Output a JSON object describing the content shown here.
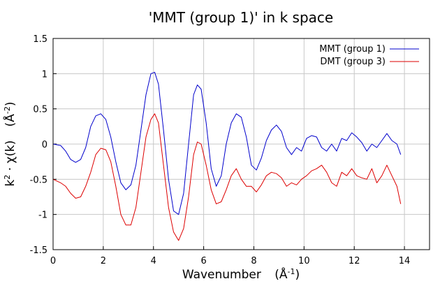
{
  "chart_data": {
    "type": "line",
    "title": "'MMT (group 1)' in k space",
    "xlabel_text": "Wavenumber",
    "xlabel_unit_base": "(Å",
    "xlabel_unit_exp": "-1",
    "xlabel_unit_close": ")",
    "ylabel_k": "k",
    "ylabel_k_exp": "2",
    "ylabel_mid": " · χ(k)",
    "ylabel_unit_base": "(Å",
    "ylabel_unit_exp": "-2",
    "ylabel_unit_close": ")",
    "xlim": [
      0,
      15
    ],
    "ylim": [
      -1.5,
      1.5
    ],
    "x_ticks": [
      0,
      2,
      4,
      6,
      8,
      10,
      12,
      14
    ],
    "y_ticks": [
      -1.5,
      -1,
      -0.5,
      0,
      0.5,
      1,
      1.5
    ],
    "y_tick_labels": [
      "-1.5",
      "-1",
      "-0.5",
      "0",
      "0.5",
      "1",
      "1.5"
    ],
    "grid": true,
    "legend_position": "top-right",
    "series": [
      {
        "name": "MMT (group 1)",
        "color": "#0000cc",
        "x": [
          0,
          0.3,
          0.5,
          0.7,
          0.9,
          1.1,
          1.3,
          1.5,
          1.7,
          1.9,
          2.1,
          2.3,
          2.5,
          2.7,
          2.9,
          3.1,
          3.3,
          3.5,
          3.7,
          3.9,
          4.05,
          4.2,
          4.4,
          4.6,
          4.8,
          5.0,
          5.2,
          5.4,
          5.6,
          5.75,
          5.9,
          6.1,
          6.3,
          6.5,
          6.7,
          6.9,
          7.1,
          7.3,
          7.5,
          7.7,
          7.9,
          8.1,
          8.3,
          8.5,
          8.7,
          8.9,
          9.1,
          9.3,
          9.5,
          9.7,
          9.9,
          10.1,
          10.3,
          10.5,
          10.7,
          10.9,
          11.1,
          11.3,
          11.5,
          11.7,
          11.9,
          12.1,
          12.3,
          12.5,
          12.7,
          12.9,
          13.1,
          13.3,
          13.5,
          13.7,
          13.85
        ],
        "y": [
          0.0,
          -0.02,
          -0.1,
          -0.22,
          -0.26,
          -0.22,
          -0.05,
          0.25,
          0.4,
          0.43,
          0.35,
          0.1,
          -0.25,
          -0.55,
          -0.65,
          -0.58,
          -0.3,
          0.2,
          0.7,
          1.0,
          1.02,
          0.85,
          0.2,
          -0.5,
          -0.95,
          -1.0,
          -0.7,
          0.0,
          0.7,
          0.84,
          0.78,
          0.3,
          -0.35,
          -0.6,
          -0.45,
          0.0,
          0.3,
          0.43,
          0.38,
          0.1,
          -0.3,
          -0.37,
          -0.2,
          0.05,
          0.2,
          0.27,
          0.18,
          -0.05,
          -0.15,
          -0.05,
          -0.1,
          0.08,
          0.12,
          0.1,
          -0.05,
          -0.1,
          0.0,
          -0.1,
          0.08,
          0.05,
          0.16,
          0.1,
          0.02,
          -0.1,
          0.0,
          -0.05,
          0.05,
          0.15,
          0.05,
          0.0,
          -0.15
        ]
      },
      {
        "name": "DMT (group 3)",
        "color": "#dd0000",
        "x": [
          0,
          0.3,
          0.5,
          0.7,
          0.9,
          1.1,
          1.3,
          1.5,
          1.7,
          1.9,
          2.1,
          2.3,
          2.5,
          2.7,
          2.9,
          3.1,
          3.3,
          3.5,
          3.7,
          3.9,
          4.05,
          4.2,
          4.4,
          4.6,
          4.8,
          5.0,
          5.2,
          5.4,
          5.6,
          5.75,
          5.9,
          6.1,
          6.3,
          6.5,
          6.7,
          6.9,
          7.1,
          7.3,
          7.5,
          7.7,
          7.9,
          8.1,
          8.3,
          8.5,
          8.7,
          8.9,
          9.1,
          9.3,
          9.5,
          9.7,
          9.9,
          10.1,
          10.3,
          10.5,
          10.7,
          10.9,
          11.1,
          11.3,
          11.5,
          11.7,
          11.9,
          12.1,
          12.3,
          12.5,
          12.7,
          12.9,
          13.1,
          13.3,
          13.5,
          13.7,
          13.85
        ],
        "y": [
          -0.5,
          -0.55,
          -0.6,
          -0.7,
          -0.77,
          -0.75,
          -0.6,
          -0.4,
          -0.15,
          -0.06,
          -0.08,
          -0.25,
          -0.6,
          -1.0,
          -1.15,
          -1.15,
          -0.9,
          -0.4,
          0.1,
          0.35,
          0.43,
          0.3,
          -0.3,
          -0.9,
          -1.25,
          -1.37,
          -1.2,
          -0.75,
          -0.15,
          0.03,
          0.0,
          -0.3,
          -0.65,
          -0.85,
          -0.82,
          -0.65,
          -0.45,
          -0.35,
          -0.5,
          -0.6,
          -0.6,
          -0.68,
          -0.58,
          -0.45,
          -0.4,
          -0.42,
          -0.48,
          -0.6,
          -0.55,
          -0.58,
          -0.5,
          -0.45,
          -0.38,
          -0.35,
          -0.3,
          -0.4,
          -0.55,
          -0.6,
          -0.4,
          -0.45,
          -0.35,
          -0.45,
          -0.48,
          -0.5,
          -0.35,
          -0.55,
          -0.45,
          -0.3,
          -0.45,
          -0.6,
          -0.85
        ]
      }
    ]
  }
}
